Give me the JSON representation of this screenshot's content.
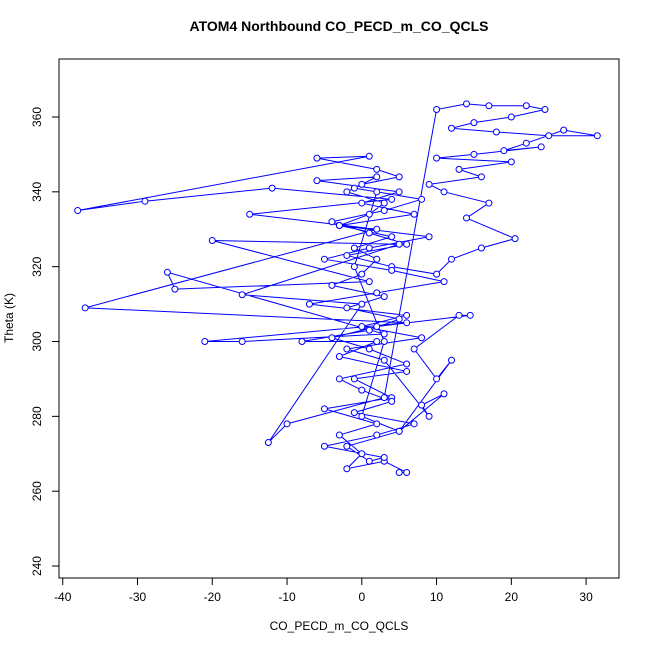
{
  "chart_data": {
    "type": "scatter",
    "connect": true,
    "title": "ATOM4 Northbound CO_PECD_m_CO_QCLS",
    "x_label": "CO_PECD_m_CO_QCLS",
    "y_label": "Theta (K)",
    "color": "#0000ff",
    "xlim": [
      -40.5,
      34.4
    ],
    "ylim": [
      236.8,
      375.5
    ],
    "xticks": [
      -40,
      -30,
      -20,
      -10,
      0,
      10,
      20,
      30
    ],
    "yticks": [
      240,
      260,
      280,
      300,
      320,
      340,
      360
    ],
    "x": [
      5,
      6,
      3,
      -2,
      0,
      -3,
      2,
      -5,
      4,
      -1,
      6,
      -3,
      2,
      -8,
      1,
      5,
      -2,
      3,
      -4,
      0,
      2,
      -1,
      4,
      -3,
      1,
      3,
      -2,
      0,
      5,
      2,
      -6,
      1,
      -38,
      -29,
      -12,
      4,
      -15,
      2,
      -37,
      6,
      -21,
      -16,
      3,
      -26,
      -25,
      1,
      -20,
      5,
      -16,
      0,
      -12.5,
      -10,
      3,
      10,
      14,
      17,
      22,
      24.5,
      20,
      15,
      12,
      18,
      25,
      31.5,
      27,
      22,
      19,
      24,
      15,
      10,
      20,
      13,
      16,
      9,
      11,
      17,
      14,
      20.5,
      16,
      12,
      10,
      4,
      -2,
      6,
      1,
      -4,
      3,
      8,
      -1,
      2,
      -6,
      5,
      0,
      7,
      -3,
      9,
      1,
      -5,
      4,
      11,
      2,
      -7,
      6,
      0,
      8,
      -2,
      3,
      9,
      8,
      11,
      5,
      12,
      10,
      7,
      13,
      14.5,
      2,
      -4,
      1,
      6,
      -3,
      0,
      4,
      -1,
      7,
      2,
      -5,
      3,
      1,
      -2,
      5,
      0,
      3,
      -1,
      2
    ],
    "y": [
      265,
      265,
      268,
      266,
      270,
      275,
      278,
      282,
      285,
      290,
      292,
      296,
      300,
      300,
      303,
      306,
      309,
      312,
      315,
      318,
      322,
      325,
      328,
      331,
      334,
      337,
      340,
      342,
      344,
      346,
      349,
      349.5,
      335,
      337.5,
      341,
      338,
      334,
      330,
      309,
      305,
      300,
      300,
      302,
      318.5,
      314,
      316,
      327,
      326,
      312.5,
      310,
      273,
      278,
      285,
      362,
      363.5,
      363,
      363,
      362,
      360,
      358.5,
      357,
      356,
      355,
      355,
      356.5,
      353,
      351,
      352,
      350,
      349,
      348,
      346,
      344,
      342,
      340,
      337,
      333,
      327.5,
      325,
      322,
      318,
      320,
      323,
      326,
      329,
      332,
      335,
      338,
      341,
      344,
      343,
      340,
      337,
      334,
      331,
      328,
      325,
      322,
      319,
      316,
      313,
      310,
      307,
      304,
      301,
      298,
      295,
      280,
      283,
      286,
      276,
      295,
      290,
      298,
      307,
      307,
      304,
      301,
      298,
      294,
      290,
      287,
      284,
      281,
      278,
      275,
      272,
      269,
      268,
      272,
      276,
      280,
      300,
      320,
      340
    ]
  }
}
